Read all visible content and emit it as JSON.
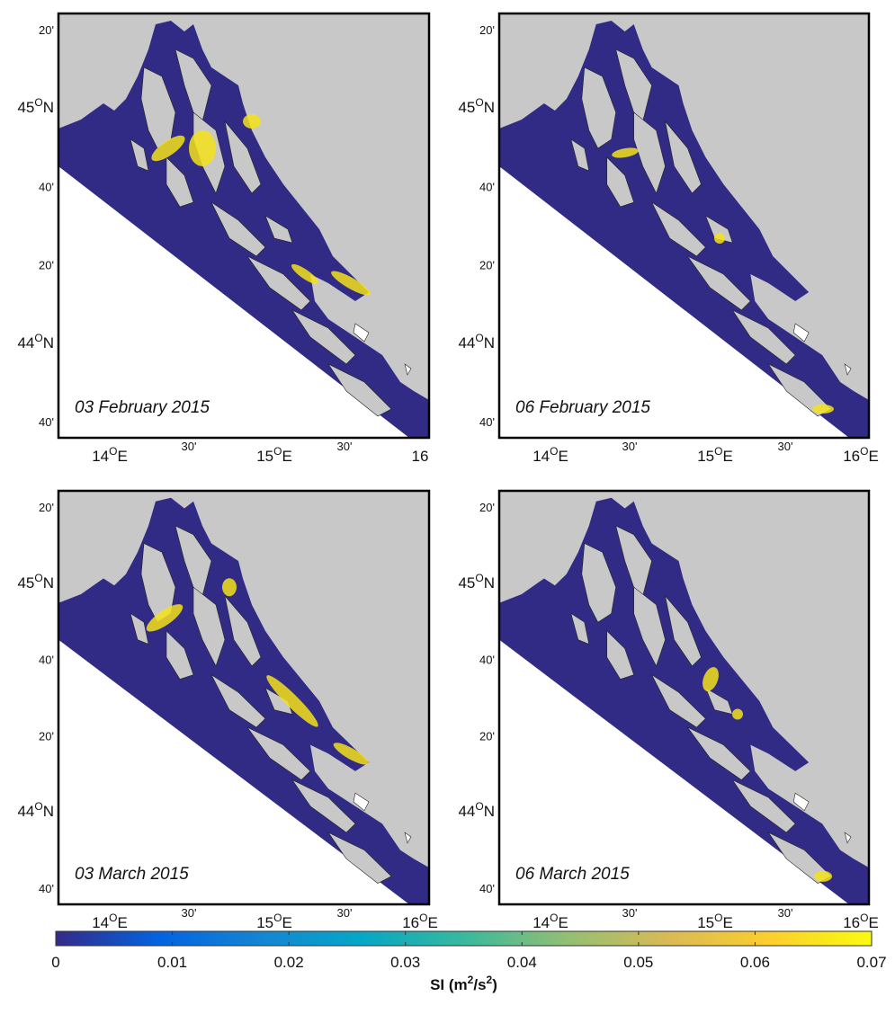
{
  "panels": [
    {
      "date": "03 February 2015",
      "yticks": [
        "20'",
        [
          "45",
          "O",
          "N"
        ],
        "40'",
        "20'",
        [
          "44",
          "O",
          "N"
        ],
        "40'"
      ],
      "xticks": [
        [
          "14",
          "O",
          "E"
        ],
        "30'",
        [
          "15",
          "O",
          "E"
        ],
        "30'",
        "16"
      ]
    },
    {
      "date": "06 February 2015",
      "yticks": [
        "20'",
        [
          "45",
          "O",
          "N"
        ],
        "40'",
        "20'",
        [
          "44",
          "O",
          "N"
        ],
        "40'"
      ],
      "xticks": [
        [
          "14",
          "O",
          "E"
        ],
        "30'",
        [
          "15",
          "O",
          "E"
        ],
        "30'",
        [
          "16",
          "O",
          "E"
        ]
      ]
    },
    {
      "date": "03 March 2015",
      "yticks": [
        "20'",
        [
          "45",
          "O",
          "N"
        ],
        "40'",
        "20'",
        [
          "44",
          "O",
          "N"
        ],
        "40'"
      ],
      "xticks": [
        [
          "14",
          "O",
          "E"
        ],
        "30'",
        [
          "15",
          "O",
          "E"
        ],
        "30'",
        [
          "16",
          "O",
          "E"
        ]
      ]
    },
    {
      "date": "06 March 2015",
      "yticks": [
        "20'",
        [
          "45",
          "O",
          "N"
        ],
        "40'",
        "20'",
        [
          "44",
          "O",
          "N"
        ],
        "40'"
      ],
      "xticks": [
        [
          "14",
          "O",
          "E"
        ],
        "30'",
        [
          "15",
          "O",
          "E"
        ],
        "30'",
        [
          "16",
          "O",
          "E"
        ]
      ]
    }
  ],
  "colorbar": {
    "lim": [
      0,
      0.07
    ],
    "ticks": [
      0,
      0.01,
      0.02,
      0.03,
      0.04,
      0.05,
      0.06,
      0.07
    ],
    "colors": [
      "#352a87",
      "#0363e1",
      "#1485d4",
      "#06a7c6",
      "#38b99e",
      "#92bf73",
      "#d9ba56",
      "#fcce2e",
      "#f9fb0e"
    ],
    "label": [
      "SI (m",
      "2",
      "/s",
      "2",
      ")"
    ]
  }
}
